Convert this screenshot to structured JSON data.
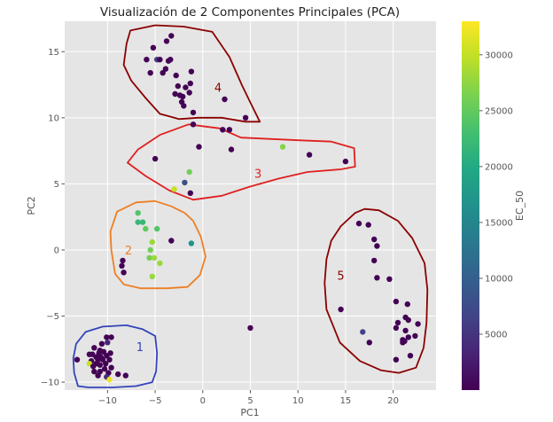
{
  "chart_data": {
    "type": "scatter",
    "title": "Visualización de 2 Componentes Principales (PCA)",
    "xlabel": "PC1",
    "ylabel": "PC2",
    "xlim": [
      -14.5,
      24.5
    ],
    "ylim": [
      -10.6,
      17.3
    ],
    "xticks": [
      -10,
      -5,
      0,
      5,
      10,
      15,
      20
    ],
    "yticks": [
      -10,
      -5,
      0,
      5,
      10,
      15
    ],
    "grid": true,
    "colorbar": {
      "label": "EC_50",
      "cmap": "viridis",
      "vmin": 0,
      "vmax": 33000,
      "ticks": [
        5000,
        10000,
        15000,
        20000,
        25000,
        30000
      ]
    },
    "points": [
      {
        "x": -5.2,
        "y": 15.3,
        "c": 100
      },
      {
        "x": -3.8,
        "y": 15.8,
        "c": 100
      },
      {
        "x": -3.3,
        "y": 16.2,
        "c": 100
      },
      {
        "x": -5.9,
        "y": 14.4,
        "c": 100
      },
      {
        "x": -4.8,
        "y": 14.4,
        "c": 6000
      },
      {
        "x": -4.5,
        "y": 14.4,
        "c": 100
      },
      {
        "x": -3.6,
        "y": 14.3,
        "c": 100
      },
      {
        "x": -3.4,
        "y": 14.4,
        "c": 100
      },
      {
        "x": -5.5,
        "y": 13.4,
        "c": 100
      },
      {
        "x": -4.2,
        "y": 13.4,
        "c": 100
      },
      {
        "x": -3.9,
        "y": 13.7,
        "c": 100
      },
      {
        "x": -2.8,
        "y": 13.2,
        "c": 100
      },
      {
        "x": -1.2,
        "y": 13.5,
        "c": 100
      },
      {
        "x": -2.6,
        "y": 12.4,
        "c": 100
      },
      {
        "x": -1.8,
        "y": 12.3,
        "c": 100
      },
      {
        "x": -1.3,
        "y": 12.6,
        "c": 100
      },
      {
        "x": -2.9,
        "y": 11.8,
        "c": 100
      },
      {
        "x": -2.4,
        "y": 11.7,
        "c": 100
      },
      {
        "x": -2.1,
        "y": 11.6,
        "c": 100
      },
      {
        "x": -2.2,
        "y": 11.2,
        "c": 100
      },
      {
        "x": -2.0,
        "y": 10.9,
        "c": 100
      },
      {
        "x": -1.4,
        "y": 11.9,
        "c": 100
      },
      {
        "x": 2.3,
        "y": 11.4,
        "c": 100
      },
      {
        "x": -1.0,
        "y": 10.4,
        "c": 100
      },
      {
        "x": 4.5,
        "y": 10.0,
        "c": 100
      },
      {
        "x": -1.0,
        "y": 9.5,
        "c": 100
      },
      {
        "x": 2.1,
        "y": 9.1,
        "c": 100
      },
      {
        "x": 2.8,
        "y": 9.1,
        "c": 100
      },
      {
        "x": -0.4,
        "y": 7.8,
        "c": 100
      },
      {
        "x": 3.0,
        "y": 7.6,
        "c": 100
      },
      {
        "x": 8.4,
        "y": 7.8,
        "c": 27000
      },
      {
        "x": 11.2,
        "y": 7.2,
        "c": 100
      },
      {
        "x": -5.0,
        "y": 6.9,
        "c": 100
      },
      {
        "x": 15.0,
        "y": 6.7,
        "c": 100
      },
      {
        "x": -1.4,
        "y": 5.9,
        "c": 26000
      },
      {
        "x": -1.9,
        "y": 5.1,
        "c": 8000
      },
      {
        "x": -3.0,
        "y": 4.6,
        "c": 30000
      },
      {
        "x": -1.3,
        "y": 4.3,
        "c": 100
      },
      {
        "x": -6.8,
        "y": 2.8,
        "c": 24000
      },
      {
        "x": -6.8,
        "y": 2.1,
        "c": 22000
      },
      {
        "x": -6.3,
        "y": 2.1,
        "c": 22000
      },
      {
        "x": -6.0,
        "y": 1.6,
        "c": 25000
      },
      {
        "x": -4.8,
        "y": 1.6,
        "c": 24000
      },
      {
        "x": -5.3,
        "y": 0.6,
        "c": 28000
      },
      {
        "x": -3.3,
        "y": 0.7,
        "c": 100
      },
      {
        "x": -1.2,
        "y": 0.5,
        "c": 17000
      },
      {
        "x": -5.5,
        "y": 0.0,
        "c": 26000
      },
      {
        "x": -5.6,
        "y": -0.6,
        "c": 26000
      },
      {
        "x": -5.1,
        "y": -0.6,
        "c": 28000
      },
      {
        "x": -8.4,
        "y": -0.8,
        "c": 100
      },
      {
        "x": -8.5,
        "y": -1.2,
        "c": 100
      },
      {
        "x": -4.5,
        "y": -1.0,
        "c": 28000
      },
      {
        "x": -8.3,
        "y": -1.7,
        "c": 100
      },
      {
        "x": -5.3,
        "y": -2.0,
        "c": 28000
      },
      {
        "x": 16.4,
        "y": 2.0,
        "c": 100
      },
      {
        "x": 17.4,
        "y": 1.9,
        "c": 100
      },
      {
        "x": 18.0,
        "y": 0.8,
        "c": 100
      },
      {
        "x": 18.3,
        "y": 0.3,
        "c": 100
      },
      {
        "x": 18.0,
        "y": -0.8,
        "c": 100
      },
      {
        "x": 18.3,
        "y": -2.1,
        "c": 100
      },
      {
        "x": 19.6,
        "y": -2.2,
        "c": 100
      },
      {
        "x": 20.3,
        "y": -3.9,
        "c": 100
      },
      {
        "x": 21.5,
        "y": -4.1,
        "c": 100
      },
      {
        "x": 14.5,
        "y": -4.5,
        "c": 100
      },
      {
        "x": 21.3,
        "y": -5.1,
        "c": 100
      },
      {
        "x": 21.6,
        "y": -5.3,
        "c": 100
      },
      {
        "x": 20.5,
        "y": -5.5,
        "c": 100
      },
      {
        "x": 22.6,
        "y": -5.6,
        "c": 100
      },
      {
        "x": 20.3,
        "y": -5.9,
        "c": 100
      },
      {
        "x": 21.3,
        "y": -6.1,
        "c": 100
      },
      {
        "x": 16.8,
        "y": -6.2,
        "c": 6500
      },
      {
        "x": 22.3,
        "y": -6.5,
        "c": 100
      },
      {
        "x": 21.0,
        "y": -6.8,
        "c": 100
      },
      {
        "x": 21.2,
        "y": -6.9,
        "c": 100
      },
      {
        "x": 21.6,
        "y": -6.6,
        "c": 100
      },
      {
        "x": 21.0,
        "y": -7.0,
        "c": 100
      },
      {
        "x": 17.5,
        "y": -7.0,
        "c": 100
      },
      {
        "x": 21.8,
        "y": -8.0,
        "c": 100
      },
      {
        "x": 20.3,
        "y": -8.3,
        "c": 100
      },
      {
        "x": 5.0,
        "y": -5.9,
        "c": 100
      },
      {
        "x": -10.1,
        "y": -6.6,
        "c": 100
      },
      {
        "x": -9.6,
        "y": -6.6,
        "c": 100
      },
      {
        "x": -10.6,
        "y": -7.1,
        "c": 100
      },
      {
        "x": -11.4,
        "y": -7.4,
        "c": 100
      },
      {
        "x": -10.0,
        "y": -7.0,
        "c": 3500
      },
      {
        "x": -10.8,
        "y": -7.6,
        "c": 100
      },
      {
        "x": -11.9,
        "y": -7.9,
        "c": 100
      },
      {
        "x": -11.6,
        "y": -7.9,
        "c": 100
      },
      {
        "x": -10.9,
        "y": -7.8,
        "c": 100
      },
      {
        "x": -10.4,
        "y": -7.7,
        "c": 100
      },
      {
        "x": -9.7,
        "y": -7.8,
        "c": 100
      },
      {
        "x": -11.2,
        "y": -8.1,
        "c": 100
      },
      {
        "x": -10.7,
        "y": -8.1,
        "c": 100
      },
      {
        "x": -10.1,
        "y": -8.0,
        "c": 100
      },
      {
        "x": -11.7,
        "y": -8.4,
        "c": 100
      },
      {
        "x": -11.0,
        "y": -8.3,
        "c": 100
      },
      {
        "x": -10.5,
        "y": -8.3,
        "c": 100
      },
      {
        "x": -9.8,
        "y": -8.3,
        "c": 100
      },
      {
        "x": -13.2,
        "y": -8.3,
        "c": 100
      },
      {
        "x": -11.9,
        "y": -8.6,
        "c": 30000
      },
      {
        "x": -11.2,
        "y": -8.6,
        "c": 100
      },
      {
        "x": -10.8,
        "y": -8.7,
        "c": 100
      },
      {
        "x": -10.2,
        "y": -8.6,
        "c": 100
      },
      {
        "x": -11.5,
        "y": -8.8,
        "c": 100
      },
      {
        "x": -10.3,
        "y": -9.0,
        "c": 100
      },
      {
        "x": -9.6,
        "y": -8.9,
        "c": 100
      },
      {
        "x": -11.4,
        "y": -9.2,
        "c": 100
      },
      {
        "x": -10.8,
        "y": -9.2,
        "c": 100
      },
      {
        "x": -9.9,
        "y": -9.3,
        "c": 100
      },
      {
        "x": -8.9,
        "y": -9.4,
        "c": 100
      },
      {
        "x": -10.1,
        "y": -9.6,
        "c": 4000
      },
      {
        "x": -9.8,
        "y": -9.8,
        "c": 32000
      },
      {
        "x": -8.1,
        "y": -9.5,
        "c": 100
      },
      {
        "x": -11.0,
        "y": -9.5,
        "c": 100
      }
    ],
    "clusters": [
      {
        "label": "1",
        "color": "#3344bb",
        "label_at": [
          -6.6,
          -7.3
        ],
        "outline": [
          [
            -13.3,
            -7.1
          ],
          [
            -12.3,
            -6.2
          ],
          [
            -10.5,
            -5.8
          ],
          [
            -8.0,
            -5.7
          ],
          [
            -6.3,
            -6.0
          ],
          [
            -5.0,
            -6.5
          ],
          [
            -4.8,
            -7.8
          ],
          [
            -4.9,
            -9.2
          ],
          [
            -5.3,
            -10.0
          ],
          [
            -7.0,
            -10.3
          ],
          [
            -9.5,
            -10.4
          ],
          [
            -12.0,
            -10.4
          ],
          [
            -13.1,
            -10.3
          ],
          [
            -13.5,
            -9.3
          ],
          [
            -13.6,
            -8.2
          ]
        ]
      },
      {
        "label": "2",
        "color": "#ee7f25",
        "label_at": [
          -7.8,
          0.0
        ],
        "outline": [
          [
            -9.7,
            1.4
          ],
          [
            -9.0,
            2.9
          ],
          [
            -7.0,
            3.6
          ],
          [
            -5.0,
            3.7
          ],
          [
            -3.3,
            3.3
          ],
          [
            -1.9,
            2.8
          ],
          [
            -1.0,
            2.2
          ],
          [
            -0.2,
            1.0
          ],
          [
            0.3,
            -0.5
          ],
          [
            -0.3,
            -1.9
          ],
          [
            -1.6,
            -2.8
          ],
          [
            -3.8,
            -2.9
          ],
          [
            -6.5,
            -2.9
          ],
          [
            -8.3,
            -2.6
          ],
          [
            -9.2,
            -1.8
          ],
          [
            -9.6,
            0.0
          ]
        ]
      },
      {
        "label": "3",
        "color": "#e02020",
        "label_at": [
          5.8,
          5.8
        ],
        "outline": [
          [
            -7.9,
            6.6
          ],
          [
            -6.8,
            7.6
          ],
          [
            -4.5,
            8.7
          ],
          [
            -1.5,
            9.5
          ],
          [
            1.8,
            9.2
          ],
          [
            4.0,
            8.5
          ],
          [
            7.0,
            8.4
          ],
          [
            10.0,
            8.3
          ],
          [
            13.5,
            8.2
          ],
          [
            15.9,
            7.7
          ],
          [
            16.0,
            6.3
          ],
          [
            14.5,
            6.1
          ],
          [
            11.0,
            5.9
          ],
          [
            8.0,
            5.4
          ],
          [
            5.0,
            4.8
          ],
          [
            2.0,
            4.1
          ],
          [
            -1.0,
            3.8
          ],
          [
            -3.5,
            4.5
          ],
          [
            -6.0,
            5.6
          ]
        ]
      },
      {
        "label": "4",
        "color": "#8b0000",
        "label_at": [
          1.6,
          12.3
        ],
        "outline": [
          [
            -8.0,
            15.6
          ],
          [
            -7.6,
            16.6
          ],
          [
            -5.0,
            17.0
          ],
          [
            -2.0,
            16.9
          ],
          [
            1.0,
            16.5
          ],
          [
            2.8,
            14.6
          ],
          [
            4.1,
            12.5
          ],
          [
            5.1,
            11.0
          ],
          [
            6.0,
            9.7
          ],
          [
            4.5,
            9.7
          ],
          [
            2.0,
            10.0
          ],
          [
            -0.5,
            10.0
          ],
          [
            -2.5,
            9.9
          ],
          [
            -4.5,
            10.3
          ],
          [
            -6.0,
            11.5
          ],
          [
            -7.5,
            12.8
          ],
          [
            -8.3,
            14.0
          ]
        ]
      },
      {
        "label": "5",
        "color": "#8b0000",
        "label_at": [
          14.5,
          -1.9
        ],
        "outline": [
          [
            13.5,
            0.7
          ],
          [
            14.5,
            1.8
          ],
          [
            16.0,
            2.8
          ],
          [
            17.0,
            3.1
          ],
          [
            18.5,
            3.0
          ],
          [
            20.5,
            2.2
          ],
          [
            22.0,
            0.9
          ],
          [
            23.3,
            -1.0
          ],
          [
            23.6,
            -3.0
          ],
          [
            23.5,
            -5.5
          ],
          [
            23.2,
            -7.4
          ],
          [
            22.4,
            -8.9
          ],
          [
            20.6,
            -9.3
          ],
          [
            18.7,
            -9.1
          ],
          [
            16.5,
            -8.4
          ],
          [
            14.4,
            -7.0
          ],
          [
            13.0,
            -4.5
          ],
          [
            12.8,
            -2.5
          ],
          [
            13.0,
            -0.7
          ]
        ]
      }
    ]
  }
}
